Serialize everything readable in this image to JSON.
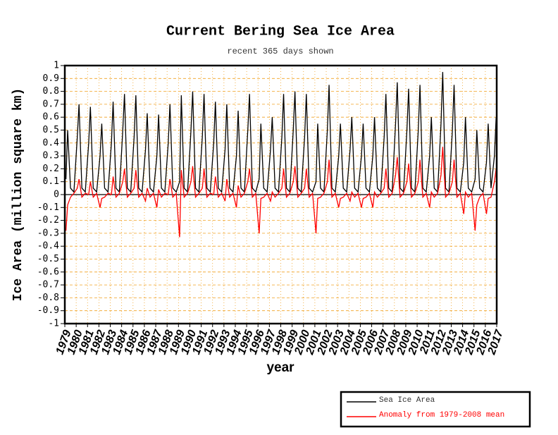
{
  "chart_data": {
    "type": "line",
    "title": "Current Bering Sea Ice Area",
    "subtitle": "recent 365 days shown",
    "xlabel": "year",
    "ylabel": "Ice Area (million square km)",
    "xlim": [
      1979,
      2017
    ],
    "ylim": [
      -1,
      1
    ],
    "xticks": [
      1979,
      1980,
      1981,
      1982,
      1983,
      1984,
      1985,
      1986,
      1987,
      1988,
      1989,
      1990,
      1991,
      1992,
      1993,
      1994,
      1995,
      1996,
      1997,
      1998,
      1999,
      2000,
      2001,
      2002,
      2003,
      2004,
      2005,
      2006,
      2007,
      2008,
      2009,
      2010,
      2011,
      2012,
      2013,
      2014,
      2015,
      2016,
      2017
    ],
    "yticks": [
      -1,
      -0.9,
      -0.8,
      -0.7,
      -0.6,
      -0.5,
      -0.4,
      -0.3,
      -0.2,
      -0.1,
      0,
      0.1,
      0.2,
      0.3,
      0.4,
      0.5,
      0.6,
      0.7,
      0.8,
      0.9,
      1
    ],
    "grid": true,
    "legend": "bottom-right",
    "x": [
      1979.1,
      1979.25,
      1979.5,
      1979.8,
      1980.1,
      1980.25,
      1980.5,
      1980.8,
      1981.1,
      1981.25,
      1981.5,
      1981.8,
      1982.1,
      1982.25,
      1982.5,
      1982.8,
      1983.1,
      1983.25,
      1983.5,
      1983.8,
      1984.1,
      1984.25,
      1984.5,
      1984.8,
      1985.1,
      1985.25,
      1985.5,
      1985.8,
      1986.1,
      1986.25,
      1986.5,
      1986.8,
      1987.1,
      1987.25,
      1987.5,
      1987.8,
      1988.1,
      1988.25,
      1988.5,
      1988.8,
      1989.1,
      1989.25,
      1989.5,
      1989.8,
      1990.1,
      1990.25,
      1990.5,
      1990.8,
      1991.1,
      1991.25,
      1991.5,
      1991.8,
      1992.1,
      1992.25,
      1992.5,
      1992.8,
      1993.1,
      1993.25,
      1993.5,
      1993.8,
      1994.1,
      1994.25,
      1994.5,
      1994.8,
      1995.1,
      1995.25,
      1995.5,
      1995.8,
      1996.1,
      1996.25,
      1996.5,
      1996.8,
      1997.1,
      1997.25,
      1997.5,
      1997.8,
      1998.1,
      1998.25,
      1998.5,
      1998.8,
      1999.1,
      1999.25,
      1999.5,
      1999.8,
      2000.1,
      2000.25,
      2000.5,
      2000.8,
      2001.1,
      2001.25,
      2001.5,
      2001.8,
      2002.1,
      2002.25,
      2002.5,
      2002.8,
      2003.1,
      2003.25,
      2003.5,
      2003.8,
      2004.1,
      2004.25,
      2004.5,
      2004.8,
      2005.1,
      2005.25,
      2005.5,
      2005.8,
      2006.1,
      2006.25,
      2006.5,
      2006.8,
      2007.1,
      2007.25,
      2007.5,
      2007.8,
      2008.1,
      2008.25,
      2008.5,
      2008.8,
      2009.1,
      2009.25,
      2009.5,
      2009.8,
      2010.1,
      2010.25,
      2010.5,
      2010.8,
      2011.1,
      2011.25,
      2011.5,
      2011.8,
      2012.1,
      2012.25,
      2012.5,
      2012.8,
      2013.1,
      2013.25,
      2013.5,
      2013.8,
      2014.1,
      2014.25,
      2014.5,
      2014.8,
      2015.1,
      2015.25,
      2015.5,
      2015.8,
      2016.1,
      2016.25,
      2016.5,
      2016.8,
      2016.95
    ],
    "series": [
      {
        "name": "Sea Ice Area",
        "color": "#000000",
        "values": [
          0.12,
          0.5,
          0.05,
          0.02,
          0.45,
          0.7,
          0.05,
          0.02,
          0.4,
          0.68,
          0.05,
          0.02,
          0.3,
          0.55,
          0.05,
          0.02,
          0.4,
          0.72,
          0.05,
          0.02,
          0.5,
          0.78,
          0.05,
          0.02,
          0.45,
          0.77,
          0.05,
          0.02,
          0.35,
          0.63,
          0.05,
          0.02,
          0.3,
          0.62,
          0.05,
          0.02,
          0.4,
          0.7,
          0.05,
          0.02,
          0.1,
          0.77,
          0.05,
          0.02,
          0.5,
          0.8,
          0.05,
          0.02,
          0.45,
          0.78,
          0.05,
          0.02,
          0.4,
          0.72,
          0.05,
          0.02,
          0.35,
          0.7,
          0.05,
          0.02,
          0.3,
          0.65,
          0.05,
          0.02,
          0.5,
          0.78,
          0.05,
          0.02,
          0.12,
          0.55,
          0.05,
          0.02,
          0.35,
          0.6,
          0.05,
          0.02,
          0.45,
          0.78,
          0.05,
          0.02,
          0.5,
          0.8,
          0.05,
          0.02,
          0.45,
          0.78,
          0.05,
          0.02,
          0.1,
          0.55,
          0.05,
          0.02,
          0.5,
          0.85,
          0.05,
          0.02,
          0.3,
          0.55,
          0.05,
          0.02,
          0.35,
          0.6,
          0.05,
          0.02,
          0.3,
          0.55,
          0.05,
          0.02,
          0.3,
          0.6,
          0.05,
          0.02,
          0.45,
          0.78,
          0.05,
          0.02,
          0.55,
          0.87,
          0.05,
          0.02,
          0.5,
          0.82,
          0.05,
          0.02,
          0.5,
          0.85,
          0.05,
          0.02,
          0.3,
          0.6,
          0.05,
          0.02,
          0.55,
          0.95,
          0.05,
          0.02,
          0.5,
          0.85,
          0.05,
          0.02,
          0.25,
          0.6,
          0.05,
          0.02,
          0.12,
          0.5,
          0.05,
          0.02,
          0.25,
          0.55,
          0.05,
          0.3,
          0.6
        ]
      },
      {
        "name": "Anomaly from 1979-2008 mean",
        "color": "#ff0000",
        "values": [
          -0.28,
          -0.08,
          -0.02,
          0.01,
          0.05,
          0.12,
          -0.02,
          0.01,
          0,
          0.1,
          -0.02,
          0.01,
          -0.1,
          -0.03,
          -0.02,
          0.01,
          0,
          0.14,
          -0.02,
          0.01,
          0.1,
          0.2,
          -0.02,
          0.01,
          0.05,
          0.19,
          -0.02,
          0.01,
          -0.05,
          0.05,
          -0.02,
          0.01,
          -0.1,
          0.04,
          -0.02,
          0.01,
          0,
          0.12,
          -0.02,
          0.01,
          -0.33,
          0.19,
          -0.02,
          0.01,
          0.1,
          0.22,
          -0.02,
          0.01,
          0.05,
          0.2,
          -0.02,
          0.01,
          0,
          0.14,
          -0.02,
          0.01,
          -0.05,
          0.12,
          -0.02,
          0.01,
          -0.1,
          0.07,
          -0.02,
          0.01,
          0.1,
          0.2,
          -0.02,
          0.01,
          -0.3,
          -0.03,
          -0.02,
          0.01,
          -0.05,
          0.02,
          -0.02,
          0.01,
          0.05,
          0.2,
          -0.02,
          0.01,
          0.1,
          0.22,
          -0.02,
          0.01,
          0.05,
          0.2,
          -0.02,
          0.01,
          -0.3,
          -0.03,
          -0.02,
          0.01,
          0.1,
          0.27,
          -0.02,
          0.01,
          -0.1,
          -0.03,
          -0.02,
          0.01,
          -0.05,
          0.02,
          -0.02,
          0.01,
          -0.1,
          -0.03,
          -0.02,
          0.01,
          -0.1,
          0.02,
          -0.02,
          0.01,
          0.05,
          0.2,
          -0.02,
          0.01,
          0.15,
          0.29,
          -0.02,
          0.01,
          0.1,
          0.24,
          -0.02,
          0.01,
          0.1,
          0.27,
          -0.02,
          0.01,
          -0.1,
          0.02,
          -0.02,
          0.01,
          0.15,
          0.37,
          -0.02,
          0.01,
          0.1,
          0.27,
          -0.02,
          0.01,
          -0.15,
          0.02,
          -0.02,
          0.01,
          -0.28,
          -0.08,
          -0.02,
          0.01,
          -0.15,
          -0.03,
          -0.02,
          0.1,
          0.2
        ]
      }
    ]
  }
}
